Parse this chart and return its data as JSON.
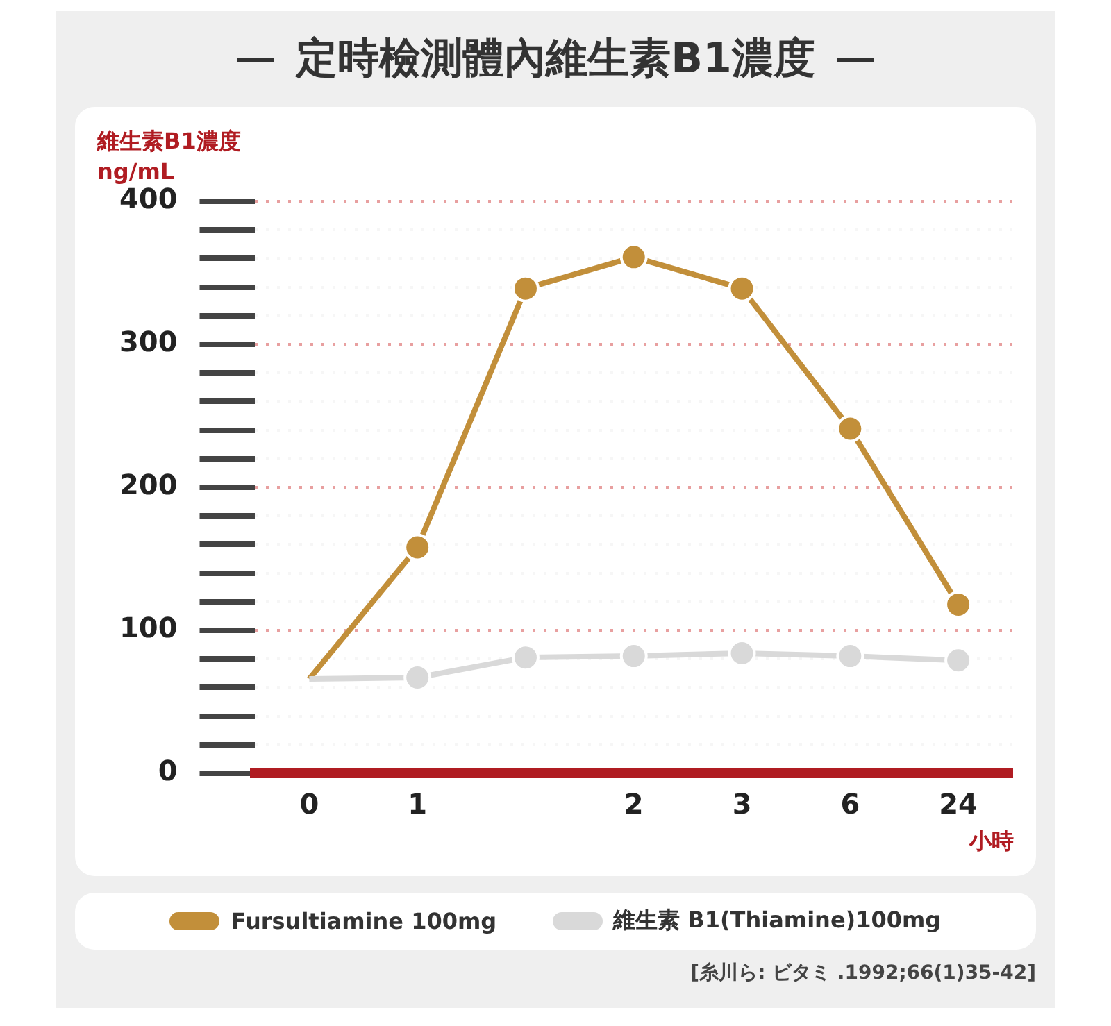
{
  "chart_data": {
    "type": "line",
    "title": "定時檢測體內維生素B1濃度",
    "categories": [
      "0",
      "1",
      null,
      "2",
      "3",
      "6",
      "24"
    ],
    "series": [
      {
        "name": "Fursultiamine 100mg",
        "color": "#c28f3a",
        "values": [
          66,
          158,
          339,
          361,
          339,
          241,
          118
        ]
      },
      {
        "name": "維生素 B1(Thiamine)100mg",
        "color": "#d9d9d9",
        "values": [
          66,
          67,
          81,
          82,
          84,
          82,
          79
        ]
      }
    ],
    "ylabel": "維生素B1濃度\nng/mL",
    "xlabel": "小時",
    "ylim": [
      0,
      400
    ],
    "yticks": [
      0,
      {
        "value": 20,
        "label": null
      },
      {
        "value": 40,
        "label": null
      },
      {
        "value": 60,
        "label": null
      },
      {
        "value": 80,
        "label": null
      },
      100,
      {
        "value": 120,
        "label": null
      },
      {
        "value": 140,
        "label": null
      },
      {
        "value": 160,
        "label": null
      },
      {
        "value": 180,
        "label": null
      },
      200,
      {
        "value": 220,
        "label": null
      },
      {
        "value": 240,
        "label": null
      },
      {
        "value": 260,
        "label": null
      },
      {
        "value": 280,
        "label": null
      },
      300,
      {
        "value": 320,
        "label": null
      },
      {
        "value": 340,
        "label": null
      },
      {
        "value": 360,
        "label": null
      },
      {
        "value": 380,
        "label": null
      },
      400
    ],
    "grid": "y",
    "legend": "bottom",
    "marker": "circle",
    "line_style": "solid",
    "annotations": [
      "[糸川ら: ビタミ .1992;66(1)35-42]"
    ]
  }
}
